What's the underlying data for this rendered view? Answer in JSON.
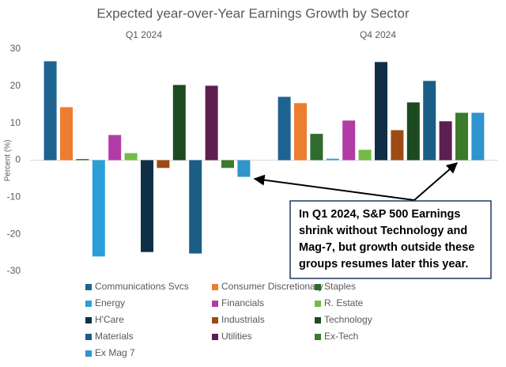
{
  "chart_data": {
    "type": "bar",
    "title": "Expected year-over-Year Earnings Growth by Sector",
    "y_label": "Percent (%)",
    "categories": [
      "Q1 2024",
      "Q4 2024"
    ],
    "series": [
      {
        "name": "Communications Svcs",
        "color": "#1f6391",
        "values": [
          26.7,
          17.1
        ]
      },
      {
        "name": "Consumer Discretionary",
        "color": "#ed7d31",
        "values": [
          14.3,
          15.4
        ]
      },
      {
        "name": "Staples",
        "color": "#2e6b2e",
        "values": [
          0.3,
          7.1
        ]
      },
      {
        "name": "Energy",
        "color": "#2aa0d8",
        "values": [
          -26,
          0.4
        ]
      },
      {
        "name": "Financials",
        "color": "#b13ca6",
        "values": [
          6.8,
          10.7
        ]
      },
      {
        "name": "R. Estate",
        "color": "#72bb46",
        "values": [
          1.9,
          2.8
        ]
      },
      {
        "name": "H'Care",
        "color": "#0f2f47",
        "values": [
          -24.8,
          26.5
        ]
      },
      {
        "name": "Industrials",
        "color": "#9e4a14",
        "values": [
          -2.1,
          8.1
        ]
      },
      {
        "name": "Technology",
        "color": "#1d4b1f",
        "values": [
          20.3,
          15.6
        ]
      },
      {
        "name": "Materials",
        "color": "#1a5e86",
        "values": [
          -25.2,
          21.4
        ]
      },
      {
        "name": "Utilities",
        "color": "#5c1f50",
        "values": [
          20.1,
          10.5
        ]
      },
      {
        "name": "Ex-Tech",
        "color": "#3a7b2c",
        "values": [
          -2.1,
          12.8
        ]
      },
      {
        "name": "Ex Mag 7",
        "color": "#2f95cc",
        "values": [
          -4.5,
          12.8
        ]
      }
    ],
    "ylim": [
      -30,
      30
    ],
    "yticks": [
      -30,
      -20,
      -10,
      0,
      10,
      20,
      30
    ],
    "grid": false,
    "annotation": [
      "In Q1 2024, S&P 500 Earnings",
      "shrink without Technology and",
      "Mag-7, but growth outside these",
      "groups resumes later this year."
    ]
  }
}
